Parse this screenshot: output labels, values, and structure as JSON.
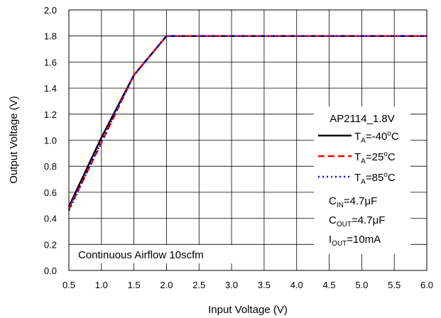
{
  "chart_data": {
    "type": "line",
    "title": "",
    "xlabel": "Input Voltage (V)",
    "ylabel": "Output Voltage (V)",
    "xlim": [
      0.5,
      6.0
    ],
    "ylim": [
      0.0,
      2.0
    ],
    "xticks": [
      "0.5",
      "1.0",
      "1.5",
      "2.0",
      "2.5",
      "3.0",
      "3.5",
      "4.0",
      "4.5",
      "5.0",
      "5.5",
      "6.0"
    ],
    "yticks": [
      "0.0",
      "0.2",
      "0.4",
      "0.6",
      "0.8",
      "1.0",
      "1.2",
      "1.4",
      "1.6",
      "1.8",
      "2.0"
    ],
    "grid": true,
    "legend_position": "right",
    "legend_title": "AP2114_1.8V",
    "series": [
      {
        "name": "TA=-40°C",
        "label_main": "T",
        "label_sub": "A",
        "label_rest": "=-40",
        "label_sup": "o",
        "label_end": "C",
        "color": "#000000",
        "dash": "solid",
        "x": [
          0.5,
          1.0,
          1.5,
          2.0,
          6.0
        ],
        "y": [
          0.49,
          1.02,
          1.5,
          1.8,
          1.8
        ]
      },
      {
        "name": "TA=25°C",
        "label_main": "T",
        "label_sub": "A",
        "label_rest": "=25",
        "label_sup": "o",
        "label_end": "C",
        "color": "#ff0000",
        "dash": "dashed",
        "x": [
          0.5,
          1.0,
          1.5,
          2.0,
          6.0
        ],
        "y": [
          0.47,
          0.98,
          1.5,
          1.8,
          1.8
        ]
      },
      {
        "name": "TA=85°C",
        "label_main": "T",
        "label_sub": "A",
        "label_rest": "=85",
        "label_sup": "o",
        "label_end": "C",
        "color": "#0000ff",
        "dash": "dotted",
        "x": [
          0.5,
          1.0,
          1.5,
          2.0,
          6.0
        ],
        "y": [
          0.46,
          0.99,
          1.5,
          1.8,
          1.8
        ]
      }
    ],
    "conditions": [
      {
        "main": "C",
        "sub": "IN",
        "rest": "=4.7μF"
      },
      {
        "main": "C",
        "sub": "OUT",
        "rest": "=4.7μF"
      },
      {
        "main": "I",
        "sub": "OUT",
        "rest": "=10mA"
      }
    ],
    "annotation": "Continuous Airflow 10scfm"
  }
}
